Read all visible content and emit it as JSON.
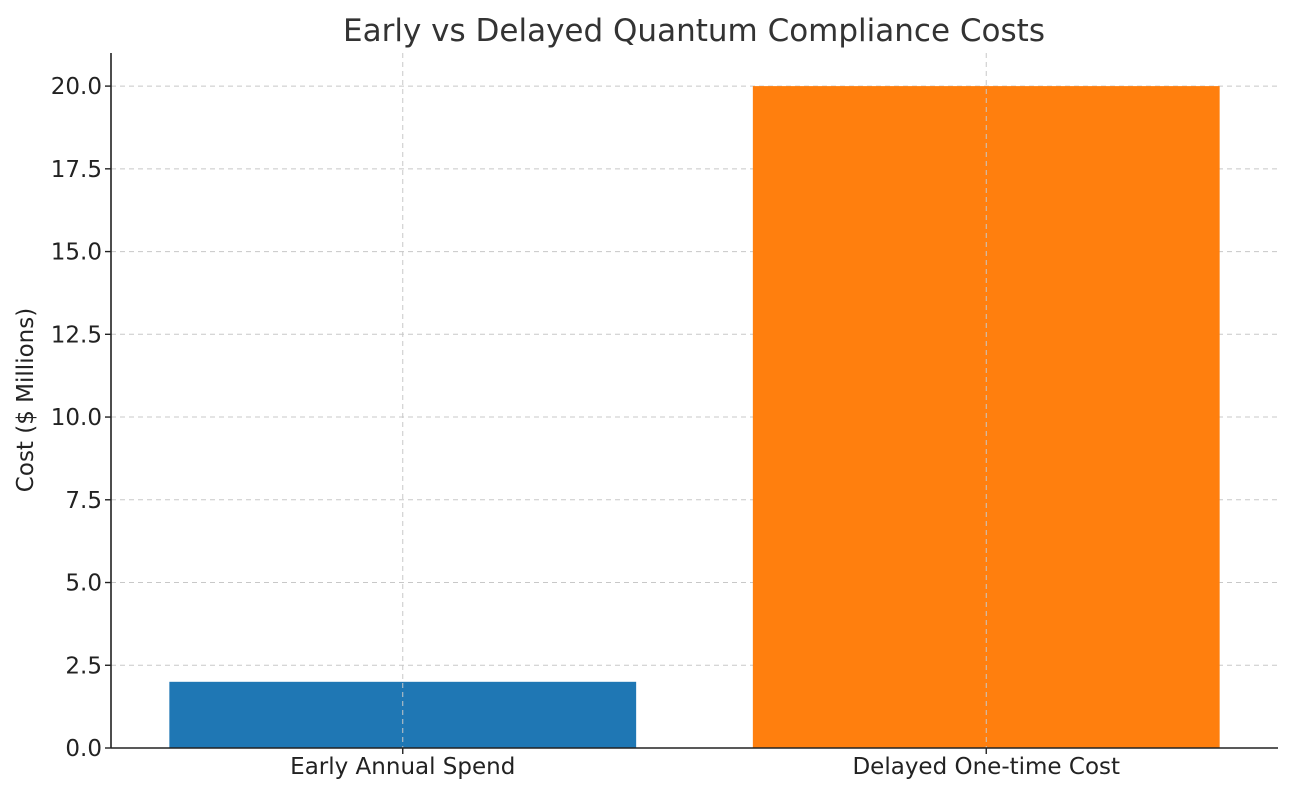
{
  "chart_data": {
    "type": "bar",
    "title": "Early vs Delayed Quantum Compliance Costs",
    "xlabel": "",
    "ylabel": "Cost ($ Millions)",
    "categories": [
      "Early Annual Spend",
      "Delayed One-time Cost"
    ],
    "values": [
      2,
      20
    ],
    "colors": [
      "#1f77b4",
      "#ff7f0e"
    ],
    "ylim": [
      0,
      21
    ],
    "yticks": [
      0,
      2.5,
      5,
      7.5,
      10,
      12.5,
      15,
      17.5,
      20
    ],
    "ytick_labels": [
      "0.0",
      "2.5",
      "5.0",
      "7.5",
      "10.0",
      "12.5",
      "15.0",
      "17.5",
      "20.0"
    ],
    "grid": true,
    "legend": "none"
  }
}
